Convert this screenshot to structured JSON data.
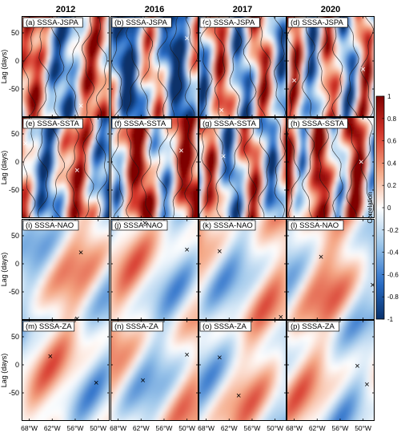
{
  "chart_data": {
    "type": "heatmap",
    "columns": [
      "2012",
      "2016",
      "2017",
      "2020"
    ],
    "rows": [
      {
        "key": "jspa",
        "label": "SSSA-JSPA",
        "colormap_intensity": "strong",
        "contours": true,
        "marker_color": "#ffffff"
      },
      {
        "key": "ssta",
        "label": "SSSA-SSTA",
        "colormap_intensity": "strong",
        "contours": true,
        "marker_color": "#ffffff"
      },
      {
        "key": "nao",
        "label": "SSSA-NAO",
        "colormap_intensity": "weak",
        "contours": false,
        "marker_color": "#000000"
      },
      {
        "key": "za",
        "label": "SSSA-ZA",
        "colormap_intensity": "weak",
        "contours": false,
        "marker_color": "#000000"
      }
    ],
    "panel_letters": [
      "a",
      "b",
      "c",
      "d",
      "e",
      "f",
      "g",
      "h",
      "i",
      "j",
      "k",
      "l",
      "m",
      "n",
      "o",
      "p"
    ],
    "xlim": [
      -70,
      -47
    ],
    "xticks": [
      -68,
      -62,
      -56,
      -50
    ],
    "xtick_labels": [
      "68°W",
      "62°W",
      "56°W",
      "50°W"
    ],
    "ylim": [
      -100,
      80
    ],
    "yticks": [
      -50,
      0,
      50
    ],
    "ytick_labels": [
      "-50",
      "0",
      "50"
    ],
    "ylabel": "Lag (days)",
    "colorbar": {
      "label": "Correlation",
      "range": [
        -1,
        1
      ],
      "ticks": [
        1,
        0.8,
        0.6,
        0.4,
        0.2,
        0,
        -0.2,
        -0.4,
        -0.6,
        -0.8,
        -1
      ],
      "tick_labels": [
        "1",
        "0.8",
        "0.6",
        "0.4",
        "0.2",
        "0",
        "-0.2",
        "-0.4",
        "-0.6",
        "-0.8",
        "-1"
      ],
      "colors": [
        "#08306b",
        "#2a6fc9",
        "#9cc6ea",
        "#ffffff",
        "#f4a582",
        "#d6362b",
        "#7f0000"
      ]
    },
    "markers": [
      {
        "panel": "a",
        "lon": -54.5,
        "lag": -80
      },
      {
        "panel": "b",
        "lon": -50.0,
        "lag": 40
      },
      {
        "panel": "c",
        "lon": -68.5,
        "lag": 63
      },
      {
        "panel": "c",
        "lon": -64.0,
        "lag": -88
      },
      {
        "panel": "d",
        "lon": -50.0,
        "lag": -15
      },
      {
        "panel": "d",
        "lon": -68.0,
        "lag": -35
      },
      {
        "panel": "e",
        "lon": -69.0,
        "lag": 33
      },
      {
        "panel": "e",
        "lon": -55.5,
        "lag": -15
      },
      {
        "panel": "f",
        "lon": -51.5,
        "lag": 20
      },
      {
        "panel": "g",
        "lon": -63.5,
        "lag": 10
      },
      {
        "panel": "h",
        "lon": -50.5,
        "lag": 0
      },
      {
        "panel": "i",
        "lon": -54.5,
        "lag": 20
      },
      {
        "panel": "i",
        "lon": -55.5,
        "lag": -98
      },
      {
        "panel": "j",
        "lon": -61.0,
        "lag": 72
      },
      {
        "panel": "j",
        "lon": -50.0,
        "lag": 25
      },
      {
        "panel": "k",
        "lon": -64.5,
        "lag": 22
      },
      {
        "panel": "k",
        "lon": -48.5,
        "lag": -95
      },
      {
        "panel": "l",
        "lon": -61.0,
        "lag": 12
      },
      {
        "panel": "l",
        "lon": -47.5,
        "lag": -38
      },
      {
        "panel": "m",
        "lon": -62.5,
        "lag": 15
      },
      {
        "panel": "m",
        "lon": -50.5,
        "lag": -32
      },
      {
        "panel": "n",
        "lon": -50.0,
        "lag": 18
      },
      {
        "panel": "n",
        "lon": -61.5,
        "lag": -28
      },
      {
        "panel": "o",
        "lon": -64.5,
        "lag": 13
      },
      {
        "panel": "o",
        "lon": -59.5,
        "lag": -55
      },
      {
        "panel": "p",
        "lon": -51.5,
        "lag": -2
      },
      {
        "panel": "p",
        "lon": -49.0,
        "lag": -35
      }
    ]
  }
}
